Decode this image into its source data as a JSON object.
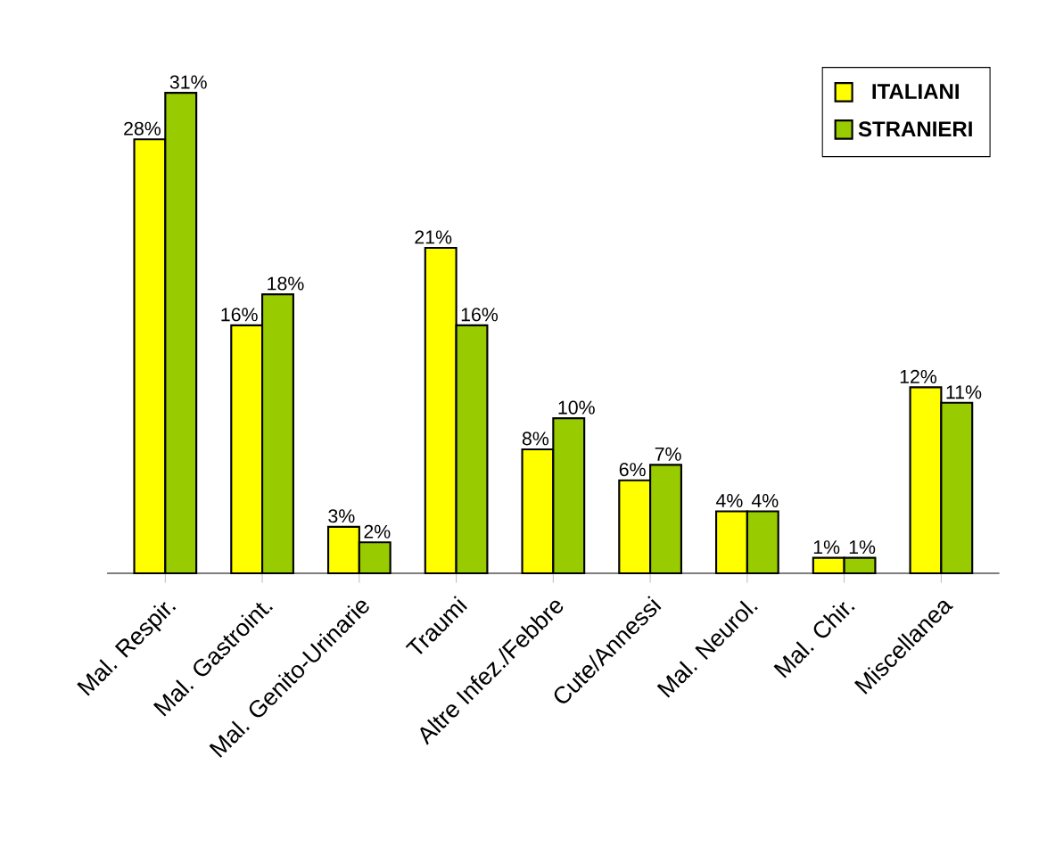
{
  "chart_data": {
    "type": "bar",
    "categories": [
      "Mal. Respir.",
      "Mal. Gastroint.",
      "Mal. Genito-Urinarie",
      "Traumi",
      "Altre Infez./Febbre",
      "Cute/Annessi",
      "Mal. Neurol.",
      "Mal. Chir.",
      "Miscellanea"
    ],
    "series": [
      {
        "name": "ITALIANI",
        "color": "#ffff00",
        "values": [
          28,
          16,
          3,
          21,
          8,
          6,
          4,
          1,
          12
        ],
        "value_labels": [
          "28%",
          "16%",
          "3%",
          "21%",
          "8%",
          "6%",
          "4%",
          "1%",
          "12%"
        ]
      },
      {
        "name": "STRANIERI",
        "color": "#99cc00",
        "values": [
          31,
          18,
          2,
          16,
          10,
          7,
          4,
          1,
          11
        ],
        "value_labels": [
          "31%",
          "18%",
          "2%",
          "16%",
          "10%",
          "7%",
          "4%",
          "1%",
          "11%"
        ]
      }
    ],
    "ylim": [
      0,
      33
    ],
    "legend": "top right"
  }
}
